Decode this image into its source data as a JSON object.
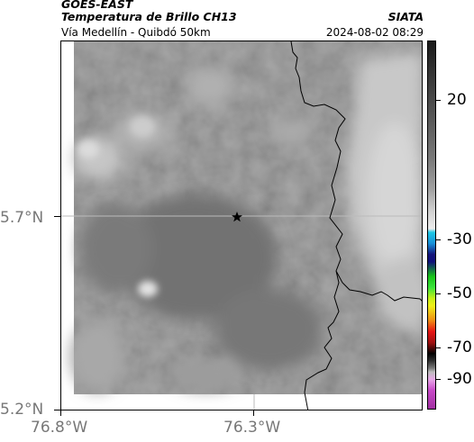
{
  "header": {
    "satellite": "GOES-EAST",
    "product": "Temperatura de Brillo CH13",
    "region": "Vía Medellín - Quibdó 50km",
    "organization": "SIATA",
    "datetime": "2024-08-02 08:29"
  },
  "map": {
    "lat_ticks": [
      "5.7°N",
      "5.2°N"
    ],
    "lon_ticks": [
      "76.8°W",
      "76.3°W"
    ],
    "marker": "star-marker"
  },
  "colorbar": {
    "labels": [
      "20",
      "-30",
      "-50",
      "-70",
      "-90"
    ],
    "colors": {
      "gray_dark": "#1a1a1a",
      "gray_light": "#e6e6e6",
      "cyan": "#1ec8e6",
      "blue": "#14147a",
      "green": "#18c418",
      "yellow": "#f0f018",
      "red": "#e61414",
      "black": "#000000",
      "magenta": "#c84ac8"
    }
  },
  "colors": {
    "background_gray": "#8a8a8a",
    "cloud_light": "#cfcfcf",
    "border_line": "#000000",
    "grid": "#bbbbbb"
  }
}
